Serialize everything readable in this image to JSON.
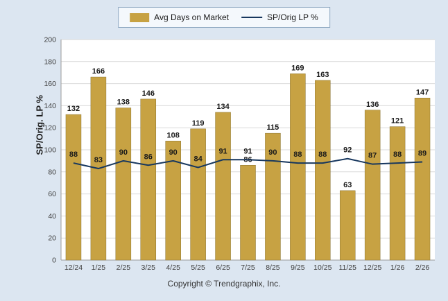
{
  "colors": {
    "page_background": "#dce6f1",
    "plot_background": "#ffffff",
    "bar": "#c7a243",
    "line": "#17375e",
    "grid": "#d9d9d9",
    "axis": "#9a9a9a",
    "label_text": "#1a1a1a",
    "tick_text": "#404040"
  },
  "legend": {
    "items": [
      {
        "label": "Avg Days on Market",
        "type": "bar"
      },
      {
        "label": "SP/Orig LP %",
        "type": "line"
      }
    ]
  },
  "ylabel": "SP/Orig. LP %",
  "footer": "Copyright © Trendgraphix, Inc.",
  "chart_data": {
    "type": "bar",
    "categories": [
      "12/24",
      "1/25",
      "2/25",
      "3/25",
      "4/25",
      "5/25",
      "6/25",
      "7/25",
      "8/25",
      "9/25",
      "10/25",
      "11/25",
      "12/25",
      "1/26",
      "2/26"
    ],
    "series": [
      {
        "name": "Avg Days on Market",
        "type": "bar",
        "color": "#c7a243",
        "values": [
          132,
          166,
          138,
          146,
          108,
          119,
          134,
          86,
          115,
          169,
          163,
          63,
          136,
          121,
          147
        ]
      },
      {
        "name": "SP/Orig LP %",
        "type": "line",
        "color": "#17375e",
        "values": [
          88,
          83,
          90,
          86,
          90,
          84,
          91,
          91,
          90,
          88,
          88,
          92,
          87,
          88,
          89
        ]
      }
    ],
    "title": "",
    "xlabel": "",
    "ylabel": "SP/Orig. LP %",
    "ylim": [
      0,
      200
    ],
    "ytick_step": 20,
    "grid": true,
    "legend_position": "top"
  }
}
